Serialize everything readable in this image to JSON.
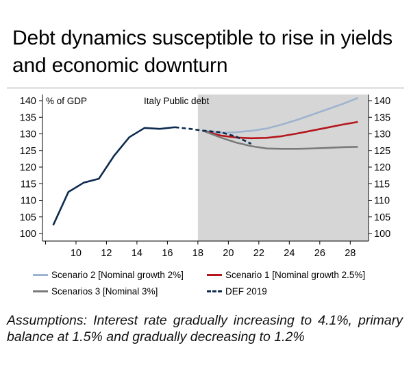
{
  "header": {
    "title": "Debt dynamics susceptible to rise in yields and economic downturn"
  },
  "footnote": {
    "text": "Assumptions: Interest rate gradually increasing to 4.1%, primary balance at 1.5% and gradually decreasing to 1.2%"
  },
  "chart_data": {
    "type": "line",
    "title": "Italy Public debt",
    "ylabel": "% of GDP",
    "xlabel": "",
    "x_ticks": [
      "",
      "10",
      "12",
      "14",
      "16",
      "18",
      "20",
      "22",
      "24",
      "26",
      "28"
    ],
    "x_tick_values": [
      8,
      10,
      12,
      14,
      16,
      18,
      20,
      22,
      24,
      26,
      28
    ],
    "y_ticks": [
      "100",
      "105",
      "110",
      "115",
      "120",
      "125",
      "130",
      "135",
      "140"
    ],
    "y_tick_values": [
      100,
      105,
      110,
      115,
      120,
      125,
      130,
      135,
      140
    ],
    "xlim": [
      7.8,
      29.2
    ],
    "ylim": [
      100,
      140
    ],
    "forecast_shading_start": 18,
    "grid": false,
    "legend_position": "bottom",
    "series": [
      {
        "name": "History",
        "color": "#0d2b4e",
        "style": "solid",
        "in_legend": false,
        "points": [
          [
            8.5,
            102.5
          ],
          [
            9.5,
            112.5
          ],
          [
            10.5,
            115.3
          ],
          [
            11.5,
            116.5
          ],
          [
            12.5,
            123.4
          ],
          [
            13.5,
            129.0
          ],
          [
            14.5,
            131.8
          ],
          [
            15.5,
            131.5
          ],
          [
            16.5,
            132.0
          ]
        ]
      },
      {
        "name": "History (dashed)",
        "color": "#0d2b4e",
        "style": "dashed",
        "in_legend": false,
        "points": [
          [
            16.5,
            132.0
          ],
          [
            17.5,
            131.5
          ],
          [
            18.3,
            131.0
          ]
        ]
      },
      {
        "name": "Scenario 2 [Nominal growth 2%]",
        "color": "#9db3cf",
        "style": "solid",
        "in_legend": true,
        "points": [
          [
            18.3,
            131.0
          ],
          [
            19.5,
            130.3
          ],
          [
            20.5,
            130.5
          ],
          [
            21.5,
            130.9
          ],
          [
            22.5,
            131.6
          ],
          [
            23.5,
            132.8
          ],
          [
            24.5,
            134.2
          ],
          [
            25.5,
            135.8
          ],
          [
            26.5,
            137.4
          ],
          [
            27.5,
            139.0
          ],
          [
            28.5,
            140.8
          ]
        ]
      },
      {
        "name": "Scenario 1 [Nominal growth 2.5%]",
        "color": "#b4161b",
        "style": "solid",
        "in_legend": true,
        "points": [
          [
            18.3,
            131.0
          ],
          [
            19.5,
            129.5
          ],
          [
            20.5,
            128.9
          ],
          [
            21.5,
            128.7
          ],
          [
            22.5,
            128.8
          ],
          [
            23.5,
            129.3
          ],
          [
            24.5,
            130.1
          ],
          [
            25.5,
            131.0
          ],
          [
            26.5,
            131.9
          ],
          [
            27.5,
            132.8
          ],
          [
            28.5,
            133.6
          ]
        ]
      },
      {
        "name": "Scenarios 3 [Nominal 3%]",
        "color": "#7a7a7a",
        "style": "solid",
        "in_legend": true,
        "points": [
          [
            18.3,
            131.0
          ],
          [
            19.5,
            128.9
          ],
          [
            20.5,
            127.4
          ],
          [
            21.5,
            126.3
          ],
          [
            22.5,
            125.6
          ],
          [
            23.5,
            125.5
          ],
          [
            24.5,
            125.5
          ],
          [
            25.5,
            125.6
          ],
          [
            26.5,
            125.8
          ],
          [
            27.5,
            126.0
          ],
          [
            28.5,
            126.1
          ]
        ]
      },
      {
        "name": "DEF 2019",
        "color": "#0d2b4e",
        "style": "dashed",
        "in_legend": true,
        "points": [
          [
            18.3,
            131.0
          ],
          [
            19.5,
            130.5
          ],
          [
            20.5,
            129.2
          ],
          [
            21.5,
            127.0
          ]
        ]
      }
    ]
  }
}
